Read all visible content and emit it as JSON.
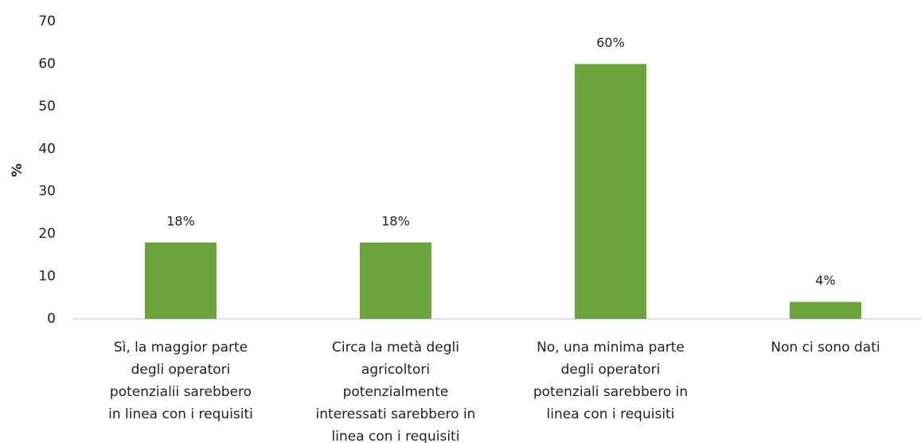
{
  "chart_data": {
    "type": "bar",
    "y_label": "%",
    "categories": [
      "Sì, la maggior parte\ndegli operatori\npotenzialii sarebbero\nin linea con i requisiti",
      "Circa la metà degli\nagricoltori\npotenzialmente\ninteressati sarebbero in\nlinea con i requisiti",
      "No, una minima parte\ndegli operatori\npotenziali sarebbero in\nlinea con i requisiti",
      "Non ci sono dati"
    ],
    "values": [
      18,
      18,
      60,
      4
    ],
    "value_labels": [
      "18%",
      "18%",
      "60%",
      "4%"
    ],
    "color": "#6aa53c",
    "ylim": [
      0,
      70
    ],
    "yticks": [
      0,
      10,
      20,
      30,
      40,
      50,
      60,
      70
    ],
    "grid": false
  }
}
